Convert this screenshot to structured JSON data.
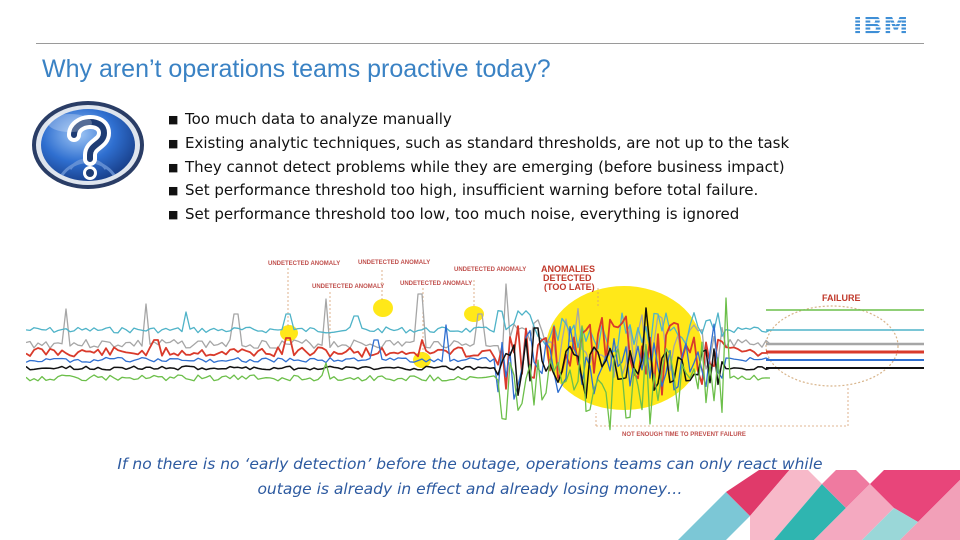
{
  "brand": {
    "logo_text": "IBM"
  },
  "slide": {
    "title": "Why aren’t operations teams proactive today?"
  },
  "bullets": [
    "Too much data to analyze manually",
    "Existing analytic techniques, such as standard thresholds, are not up to the task",
    "They cannot detect problems while they are emerging (before business impact)",
    "Set performance threshold too high, insufficient warning before total failure.",
    "Set performance threshold too low, too much noise, everything is ignored"
  ],
  "figure": {
    "annotations": {
      "undetected_1": "UNDETECTED ANOMALY",
      "undetected_2": "UNDETECTED ANOMALY",
      "undetected_3": "UNDETECTED ANOMALY",
      "undetected_4": "UNDETECTED ANOMALY",
      "undetected_5": "UNDETECTED ANOMALY",
      "anomalies_detected_line1": "ANOMALIES",
      "anomalies_detected_line2": "DETECTED",
      "anomalies_detected_line3": "(TOO LATE)",
      "failure": "FAILURE",
      "not_enough_time": "NOT ENOUGH TIME TO PREVENT FAILURE"
    },
    "colors": {
      "gray": "#a6a6a6",
      "cyan": "#4fb3c8",
      "red": "#d93a2b",
      "blue": "#2f6fd0",
      "green": "#6cbf4a",
      "black": "#111111",
      "highlight": "#ffe600",
      "annotation": "#c0504d"
    }
  },
  "caption": {
    "line1": "If no there is no ‘early detection’ before the outage, operations teams can only react while",
    "line2": "outage is already in effect and already losing money…"
  },
  "icons": {
    "help": "question-mark-icon"
  }
}
